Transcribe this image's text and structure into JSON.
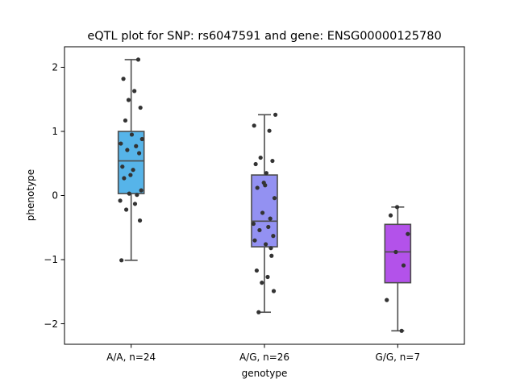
{
  "chart_data": {
    "type": "box",
    "title": "eQTL plot for SNP: rs6047591 and gene: ENSG00000125780",
    "xlabel": "genotype",
    "ylabel": "phenotype",
    "ylim": [
      -2.32,
      2.32
    ],
    "yticks": [
      -2,
      -1,
      0,
      1,
      2
    ],
    "ytick_labels": [
      "−2",
      "−1",
      "0",
      "1",
      "2"
    ],
    "grid": false,
    "categories": [
      "A/A, n=24",
      "A/G, n=26",
      "G/G, n=7"
    ],
    "boxes": [
      {
        "category": "A/A, n=24",
        "color": "#56b4e9",
        "whisker_low": -1.01,
        "q1": 0.03,
        "median": 0.54,
        "q3": 1.0,
        "whisker_high": 2.12,
        "points": [
          2.12,
          1.82,
          1.63,
          1.49,
          1.37,
          1.17,
          0.95,
          0.88,
          0.81,
          0.77,
          0.71,
          0.66,
          0.45,
          0.4,
          0.32,
          0.27,
          0.08,
          0.03,
          0.01,
          -0.08,
          -0.13,
          -0.22,
          -0.39,
          -1.01
        ]
      },
      {
        "category": "A/G, n=26",
        "color": "#9391f2",
        "whisker_low": -1.82,
        "q1": -0.8,
        "median": -0.4,
        "q3": 0.32,
        "whisker_high": 1.26,
        "points": [
          1.26,
          1.09,
          1.01,
          0.59,
          0.54,
          0.49,
          0.35,
          0.2,
          0.12,
          -0.04,
          -0.27,
          -0.36,
          -0.44,
          -0.49,
          -0.54,
          -0.63,
          -0.7,
          -0.76,
          -0.82,
          -0.94,
          -1.17,
          -1.27,
          -1.36,
          -1.49,
          -1.82,
          0.16
        ]
      },
      {
        "category": "G/G, n=7",
        "color": "#b352ea",
        "whisker_low": -2.11,
        "q1": -1.36,
        "median": -0.88,
        "q3": -0.45,
        "whisker_high": -0.18,
        "points": [
          -0.18,
          -0.31,
          -0.6,
          -0.88,
          -1.09,
          -1.63,
          -2.11
        ]
      }
    ]
  }
}
